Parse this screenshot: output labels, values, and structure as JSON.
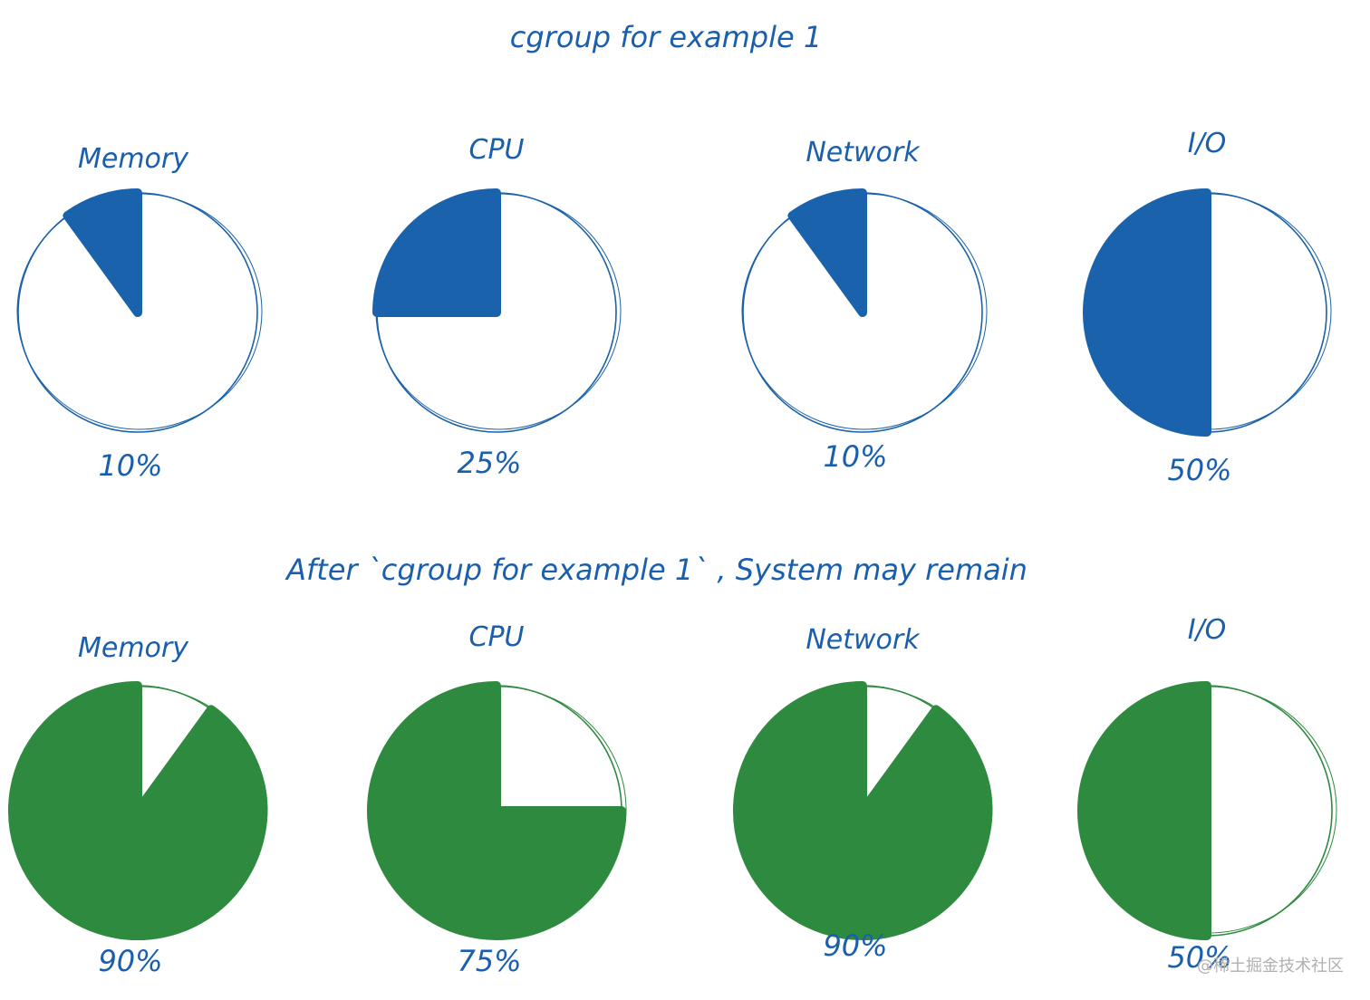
{
  "chart_data": [
    {
      "type": "pie",
      "title": "cgroup for example 1",
      "color": "#1a62ab",
      "categories": [
        "Memory",
        "CPU",
        "Network",
        "I/O"
      ],
      "values": [
        10,
        25,
        10,
        50
      ],
      "value_labels": [
        "10%",
        "25%",
        "10%",
        "50%"
      ]
    },
    {
      "type": "pie",
      "title": "After `cgroup for example 1` , System may remain",
      "color": "#2e8a3e",
      "categories": [
        "Memory",
        "CPU",
        "Network",
        "I/O"
      ],
      "values": [
        90,
        75,
        90,
        50
      ],
      "value_labels": [
        "90%",
        "75%",
        "90%",
        "50%"
      ]
    }
  ],
  "watermark": "@稀土掘金技术社区"
}
